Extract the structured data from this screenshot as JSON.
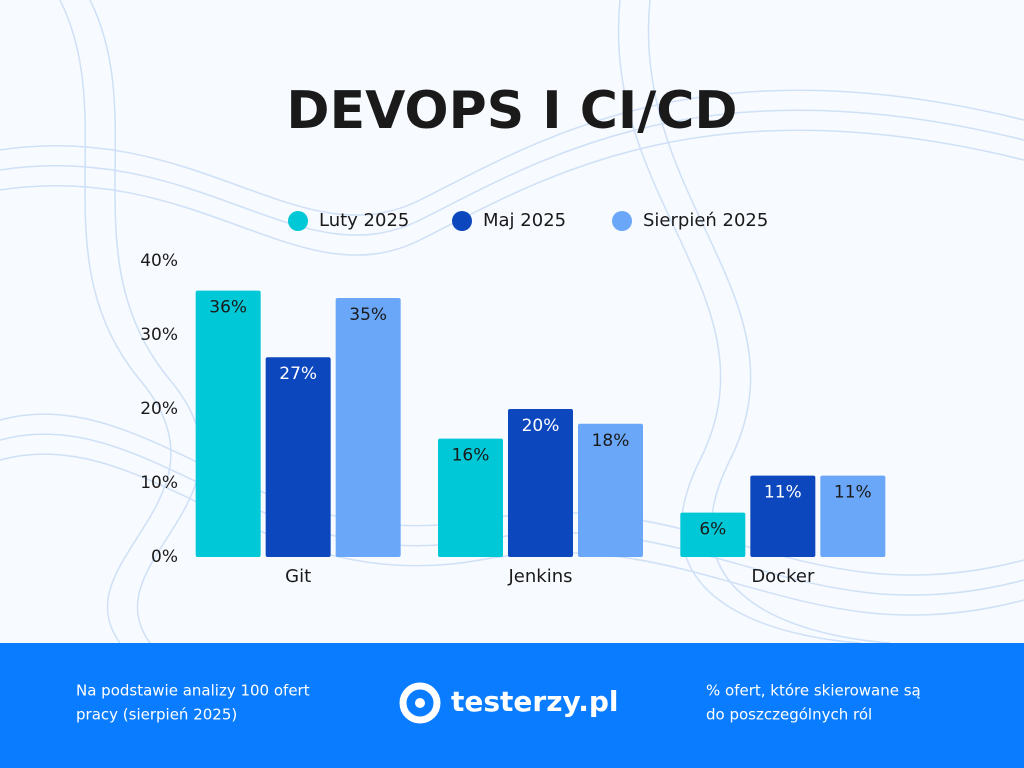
{
  "chart_data": {
    "type": "bar",
    "title": "DEVOPS I CI/CD",
    "categories": [
      "Git",
      "Jenkins",
      "Docker"
    ],
    "series": [
      {
        "name": "Luty 2025",
        "color": "#00c8d7",
        "values": [
          36,
          16,
          6
        ],
        "value_labels": [
          "36%",
          "16%",
          "6%"
        ]
      },
      {
        "name": "Maj 2025",
        "color": "#0d47bd",
        "values": [
          27,
          20,
          11
        ],
        "value_labels": [
          "27%",
          "20%",
          "11%"
        ]
      },
      {
        "name": "Sierpień 2025",
        "color": "#6aa7f8",
        "values": [
          35,
          18,
          11
        ],
        "value_labels": [
          "35%",
          "18%",
          "11%"
        ]
      }
    ],
    "ylim": [
      0,
      40
    ],
    "yticks": [
      {
        "value": 0,
        "label": "0%"
      },
      {
        "value": 10,
        "label": "10%"
      },
      {
        "value": 20,
        "label": "20%"
      },
      {
        "value": 30,
        "label": "30%"
      },
      {
        "value": 40,
        "label": "40%"
      }
    ],
    "grid": false,
    "legend": "top"
  },
  "footer": {
    "left": [
      "Na podstawie analizy 100 ofert",
      "pracy (sierpień 2025)"
    ],
    "logo": "testerzy.pl",
    "right": [
      "% ofert, które skierowane są",
      "do poszczególnych ról"
    ]
  }
}
